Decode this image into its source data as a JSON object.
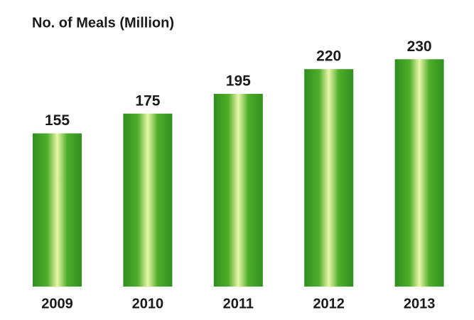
{
  "chart_data": {
    "type": "bar",
    "title": "No. of Meals (Million)",
    "categories": [
      "2009",
      "2010",
      "2011",
      "2012",
      "2013"
    ],
    "values": [
      155,
      175,
      195,
      220,
      230
    ],
    "color": "#2f8f1f"
  }
}
